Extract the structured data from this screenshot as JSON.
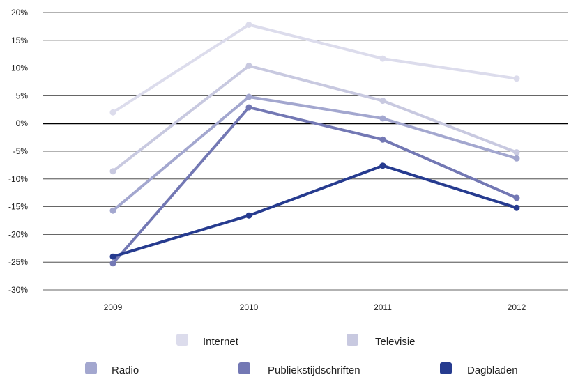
{
  "chart_data": {
    "type": "line",
    "categories": [
      "2009",
      "2010",
      "2011",
      "2012"
    ],
    "ylim": [
      -30,
      20
    ],
    "yticks": [
      20,
      15,
      10,
      5,
      0,
      -5,
      -10,
      -15,
      -20,
      -25,
      -30
    ],
    "ytick_labels": [
      "20%",
      "15%",
      "10%",
      "5%",
      "0%",
      "-5%",
      "-10%",
      "-15%",
      "-20%",
      "-25%",
      "-30%"
    ],
    "grid": true,
    "legend_position": "bottom",
    "series": [
      {
        "name": "Internet",
        "color": "#dcdcec",
        "values": [
          2.0,
          17.8,
          11.7,
          8.1
        ]
      },
      {
        "name": "Televisie",
        "color": "#c8c9e0",
        "values": [
          -8.6,
          10.4,
          4.1,
          -5.2
        ]
      },
      {
        "name": "Radio",
        "color": "#a3a7cf",
        "values": [
          -15.7,
          4.8,
          0.9,
          -6.3
        ]
      },
      {
        "name": "Publiekstijdschriften",
        "color": "#7378b4",
        "values": [
          -25.2,
          2.9,
          -2.9,
          -13.4
        ]
      },
      {
        "name": "Dagbladen",
        "color": "#263b8f",
        "values": [
          -24.0,
          -16.6,
          -7.6,
          -15.2
        ]
      }
    ]
  }
}
